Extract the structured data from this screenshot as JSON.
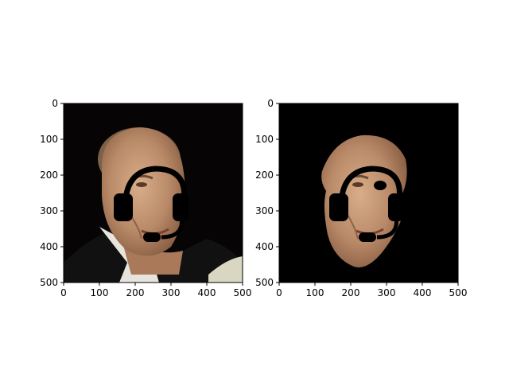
{
  "chart_data": [
    {
      "type": "image",
      "title": "",
      "xlabel": "",
      "ylabel": "",
      "xlim": [
        0,
        500
      ],
      "ylim": [
        500,
        0
      ],
      "xticks": [
        0,
        100,
        200,
        300,
        400,
        500
      ],
      "yticks": [
        0,
        100,
        200,
        300,
        400,
        500
      ],
      "grid": false,
      "background_color": "#000000",
      "content": "original face photo with headset overlay"
    },
    {
      "type": "image",
      "title": "",
      "xlabel": "",
      "ylabel": "",
      "xlim": [
        0,
        500
      ],
      "ylim": [
        500,
        0
      ],
      "xticks": [
        0,
        100,
        200,
        300,
        400,
        500
      ],
      "yticks": [
        0,
        100,
        200,
        300,
        400,
        500
      ],
      "grid": false,
      "background_color": "#000000",
      "content": "masked face region with headset overlay"
    }
  ],
  "colors": {
    "skin": "#c89a78",
    "skin_shadow": "#9a6e52",
    "hair": "#8a6e56",
    "jacket": "#121212",
    "shirt": "#e8e6de",
    "headset": "#000000"
  }
}
